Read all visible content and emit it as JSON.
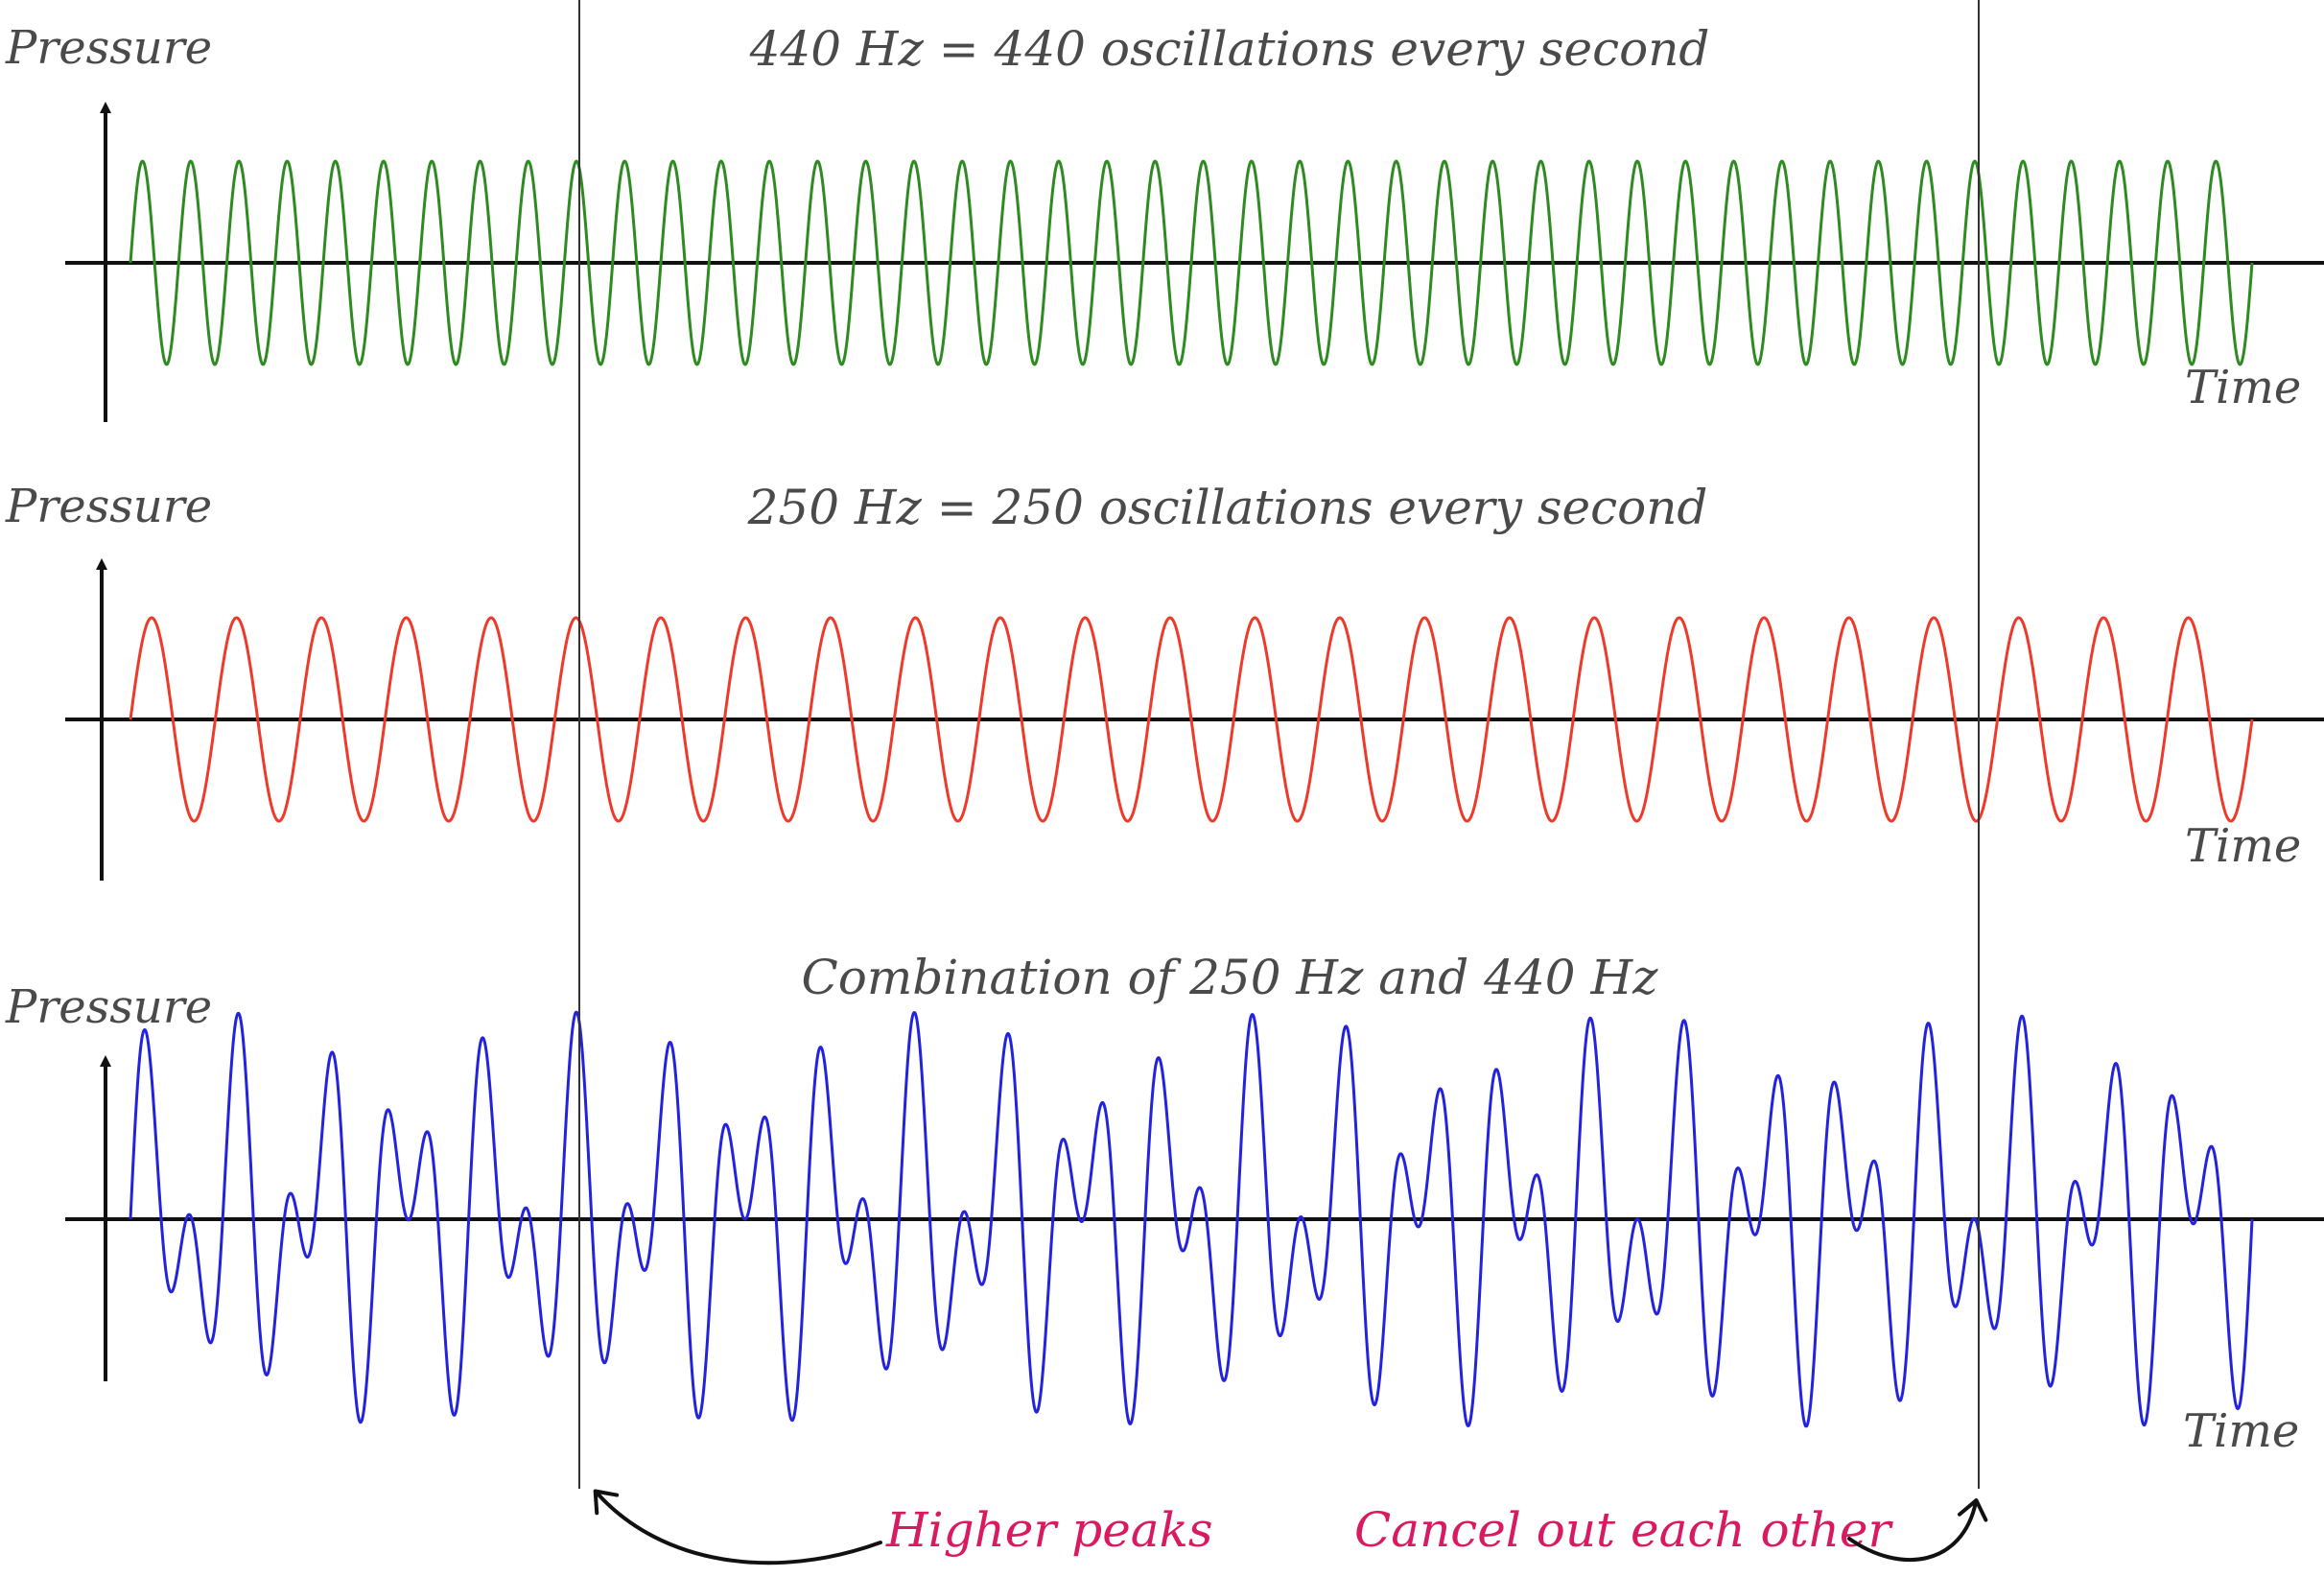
{
  "colors": {
    "wave_440": "#2e8b22",
    "wave_250": "#ee3a2a",
    "wave_combined": "#2323dd",
    "axis": "#111111",
    "marker_line": "#333333",
    "label_text": "#4a4a4a",
    "annotation_text": "#d81b60"
  },
  "annotations": {
    "higher_peaks": "Higher peaks",
    "cancel_out": "Cancel out each other"
  },
  "chart_data": [
    {
      "type": "line",
      "title": "440 Hz = 440 oscillations every second",
      "xlabel": "Time",
      "ylabel": "Pressure",
      "series": [
        {
          "frequency_hz": 440,
          "amplitude": 1,
          "color": "#2e8b22"
        }
      ],
      "cycles_shown": 44,
      "ylim": [
        -1,
        1
      ],
      "grid": false,
      "legend": "none"
    },
    {
      "type": "line",
      "title": "250 Hz = 250 oscillations every second",
      "xlabel": "Time",
      "ylabel": "Pressure",
      "series": [
        {
          "frequency_hz": 250,
          "amplitude": 1,
          "color": "#ee3a2a"
        }
      ],
      "cycles_shown": 25,
      "ylim": [
        -1,
        1
      ],
      "grid": false,
      "legend": "none"
    },
    {
      "type": "line",
      "title": "Combination of 250 Hz and 440 Hz",
      "xlabel": "Time",
      "ylabel": "Pressure",
      "series": [
        {
          "components_hz": [
            250,
            440
          ],
          "amplitude": 2,
          "color": "#2323dd"
        }
      ],
      "ylim": [
        -2,
        2
      ],
      "grid": false,
      "legend": "none"
    }
  ]
}
